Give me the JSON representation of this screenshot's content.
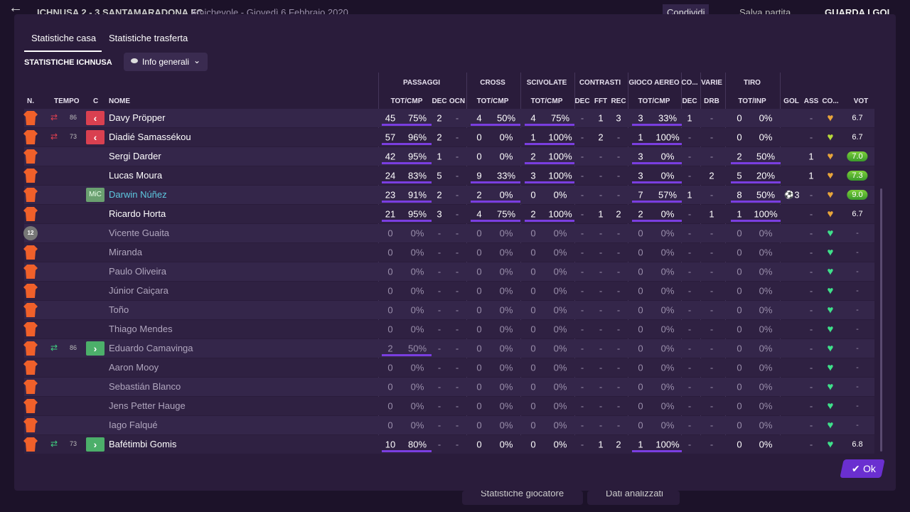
{
  "header": {
    "match": "ICHNUSA 2 - 3 SANTAMARADONA FC",
    "info": "Amichevole - Giovedì 6 Febbraio 2020",
    "share": "Condividi",
    "save": "Salva partita",
    "goals": "GUARDA I GOL"
  },
  "footer": {
    "player_stats": "Statistiche giocatore",
    "analysed": "Dati analizzati"
  },
  "tabs": [
    "Statistiche casa",
    "Statistiche trasferta"
  ],
  "section": "STATISTICHE ICHNUSA",
  "dropdown": "Info generali",
  "ok": "Ok",
  "groups": [
    "PASSAGGI",
    "CROSS",
    "SCIVOLATE",
    "CONTRASTI",
    "GIOCO AEREO",
    "CO...",
    "VARIE",
    "TIRO"
  ],
  "columns": [
    "N.",
    "TEMPO",
    "C",
    "NOME",
    "TOT/CMP",
    "DEC",
    "OCN",
    "TOT/CMP",
    "TOT/CMP",
    "DEC",
    "FFT",
    "REC",
    "TOT/CMP",
    "DEC",
    "DRB",
    "TOT/INP",
    "GOL",
    "ASS",
    "CO...",
    "VOT"
  ],
  "rows": [
    {
      "name": "Davy Pröpper",
      "sub": "out",
      "min": "86",
      "heart": "#e8a53a",
      "cells": [
        "45",
        "75%",
        "2",
        "-",
        "4",
        "50%",
        "4",
        "75%",
        "-",
        "1",
        "3",
        "3",
        "33%",
        "1",
        "-",
        "0",
        "0%",
        null,
        "-",
        "6.7"
      ]
    },
    {
      "name": "Diadié Samassékou",
      "sub": "out",
      "min": "73",
      "heart": "#b8d83a",
      "cells": [
        "57",
        "96%",
        "2",
        "-",
        "0",
        "0%",
        "1",
        "100%",
        "-",
        "2",
        "-",
        "1",
        "100%",
        "-",
        "-",
        "0",
        "0%",
        null,
        "-",
        "6.7"
      ]
    },
    {
      "name": "Sergi Darder",
      "heart": "#e8a53a",
      "cells": [
        "42",
        "95%",
        "1",
        "-",
        "0",
        "0%",
        "2",
        "100%",
        "-",
        "-",
        "-",
        "3",
        "0%",
        "-",
        "-",
        "2",
        "50%",
        null,
        "1",
        "7.0"
      ]
    },
    {
      "name": "Lucas Moura",
      "heart": "#e8a53a",
      "cells": [
        "24",
        "83%",
        "5",
        "-",
        "9",
        "33%",
        "3",
        "100%",
        "-",
        "-",
        "-",
        "3",
        "0%",
        "-",
        "2",
        "5",
        "20%",
        null,
        "1",
        "7.3"
      ]
    },
    {
      "name": "Darwin Núñez",
      "role": "MiC",
      "name_color": "#5ec8e0",
      "heart": "#e8a53a",
      "cells": [
        "23",
        "91%",
        "2",
        "-",
        "2",
        "0%",
        "0",
        "0%",
        "-",
        "-",
        "-",
        "7",
        "57%",
        "1",
        "-",
        "8",
        "50%",
        "3",
        "-",
        "9.0"
      ]
    },
    {
      "name": "Ricardo Horta",
      "heart": "#e8a53a",
      "cells": [
        "21",
        "95%",
        "3",
        "-",
        "4",
        "75%",
        "2",
        "100%",
        "-",
        "1",
        "2",
        "2",
        "0%",
        "-",
        "1",
        "1",
        "100%",
        null,
        "-",
        "6.7"
      ]
    },
    {
      "name": "Vicente Guaita",
      "shirt": "12",
      "heart": "#3fe08a",
      "cells": [
        "0",
        "0%",
        "-",
        "-",
        "0",
        "0%",
        "0",
        "0%",
        "-",
        "-",
        "-",
        "0",
        "0%",
        "-",
        "-",
        "0",
        "0%",
        null,
        "-",
        "-"
      ]
    },
    {
      "name": "Miranda",
      "heart": "#3fe08a",
      "cells": [
        "0",
        "0%",
        "-",
        "-",
        "0",
        "0%",
        "0",
        "0%",
        "-",
        "-",
        "-",
        "0",
        "0%",
        "-",
        "-",
        "0",
        "0%",
        null,
        "-",
        "-"
      ]
    },
    {
      "name": "Paulo Oliveira",
      "heart": "#3fe08a",
      "cells": [
        "0",
        "0%",
        "-",
        "-",
        "0",
        "0%",
        "0",
        "0%",
        "-",
        "-",
        "-",
        "0",
        "0%",
        "-",
        "-",
        "0",
        "0%",
        null,
        "-",
        "-"
      ]
    },
    {
      "name": "Júnior Caiçara",
      "heart": "#3fe08a",
      "cells": [
        "0",
        "0%",
        "-",
        "-",
        "0",
        "0%",
        "0",
        "0%",
        "-",
        "-",
        "-",
        "0",
        "0%",
        "-",
        "-",
        "0",
        "0%",
        null,
        "-",
        "-"
      ]
    },
    {
      "name": "Toño",
      "heart": "#3fe08a",
      "cells": [
        "0",
        "0%",
        "-",
        "-",
        "0",
        "0%",
        "0",
        "0%",
        "-",
        "-",
        "-",
        "0",
        "0%",
        "-",
        "-",
        "0",
        "0%",
        null,
        "-",
        "-"
      ]
    },
    {
      "name": "Thiago Mendes",
      "heart": "#3fe08a",
      "cells": [
        "0",
        "0%",
        "-",
        "-",
        "0",
        "0%",
        "0",
        "0%",
        "-",
        "-",
        "-",
        "0",
        "0%",
        "-",
        "-",
        "0",
        "0%",
        null,
        "-",
        "-"
      ]
    },
    {
      "name": "Eduardo Camavinga",
      "sub": "in",
      "min": "86",
      "heart": "#3fe08a",
      "cells": [
        "2",
        "50%",
        "-",
        "-",
        "0",
        "0%",
        "0",
        "0%",
        "-",
        "-",
        "-",
        "0",
        "0%",
        "-",
        "-",
        "0",
        "0%",
        null,
        "-",
        "-"
      ]
    },
    {
      "name": "Aaron Mooy",
      "heart": "#3fe08a",
      "cells": [
        "0",
        "0%",
        "-",
        "-",
        "0",
        "0%",
        "0",
        "0%",
        "-",
        "-",
        "-",
        "0",
        "0%",
        "-",
        "-",
        "0",
        "0%",
        null,
        "-",
        "-"
      ]
    },
    {
      "name": "Sebastián Blanco",
      "heart": "#3fe08a",
      "cells": [
        "0",
        "0%",
        "-",
        "-",
        "0",
        "0%",
        "0",
        "0%",
        "-",
        "-",
        "-",
        "0",
        "0%",
        "-",
        "-",
        "0",
        "0%",
        null,
        "-",
        "-"
      ]
    },
    {
      "name": "Jens Petter Hauge",
      "heart": "#3fe08a",
      "cells": [
        "0",
        "0%",
        "-",
        "-",
        "0",
        "0%",
        "0",
        "0%",
        "-",
        "-",
        "-",
        "0",
        "0%",
        "-",
        "-",
        "0",
        "0%",
        null,
        "-",
        "-"
      ]
    },
    {
      "name": "Iago Falqué",
      "heart": "#3fe08a",
      "cells": [
        "0",
        "0%",
        "-",
        "-",
        "0",
        "0%",
        "0",
        "0%",
        "-",
        "-",
        "-",
        "0",
        "0%",
        "-",
        "-",
        "0",
        "0%",
        null,
        "-",
        "-"
      ]
    },
    {
      "name": "Bafétimbi Gomis",
      "sub": "in",
      "min": "73",
      "heart": "#3fe08a",
      "cells": [
        "10",
        "80%",
        "-",
        "-",
        "0",
        "0%",
        "0",
        "0%",
        "-",
        "1",
        "2",
        "1",
        "100%",
        "-",
        "-",
        "0",
        "0%",
        null,
        "-",
        "6.8"
      ]
    }
  ]
}
